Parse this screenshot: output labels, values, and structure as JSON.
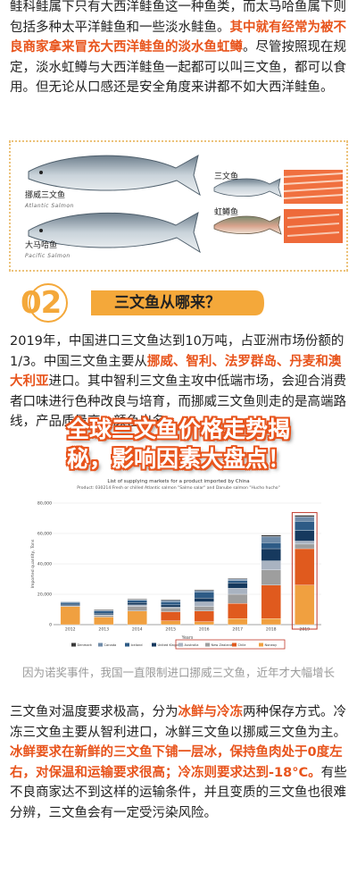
{
  "para1": {
    "t1": "鲑科鲑属下只有大西洋鲑鱼这一种鱼类，而太马哈鱼属下则包括多种太平洋鲑鱼和一些淡水鲑鱼。",
    "h1": "其中就有经常为被不良商家拿来冒充大西洋鲑鱼的淡水鱼虹鳟",
    "t2": "。尽管按照现在规定，淡水虹鳟与大西洋鲑鱼一起都可以叫三文鱼，都可以食用。但无论从口感还是安全角度来讲都不如大西洋鲑鱼。"
  },
  "fish": {
    "atlantic": {
      "cn": "挪威三文鱼",
      "en": "Atlantic Salmon"
    },
    "pacific": {
      "cn": "大马哈鱼",
      "en": "Pacific Salmon"
    },
    "salmon": "三文鱼",
    "trout": "虹鳟鱼"
  },
  "section": {
    "num": "02",
    "title": "三文鱼从哪来？"
  },
  "para2": {
    "t1": "2019年，中国进口三文鱼达到10万吨，占亚洲市场份额的1/3。中国三文鱼主要从",
    "h1": "挪威、智利、法罗群岛、丹麦和澳大利亚",
    "t2": "进口。其中智利三文鱼主攻中低端市场，会迎合消费者口味进行色种改良与培育，而挪威三文鱼则走的是高端路线，产品质量高，颜色出名。"
  },
  "overlay": {
    "line1": "全球三文鱼价格走势揭",
    "line2": "秘，影响因素大盘点！"
  },
  "chart_data": {
    "type": "bar",
    "title": "List of supplying markets for a product imported by China",
    "subtitle": "Product: 030214 Fresh or chilled Atlantic salmon \"Salmo salar\" and Danube salmon \"Hucho hucho\"",
    "ylabel": "Imported quantity, Tons",
    "xlabel": "Years",
    "categories": [
      "2012",
      "2013",
      "2014",
      "2015",
      "2016",
      "2017",
      "2018",
      "2019"
    ],
    "ylim": [
      0,
      80000
    ],
    "yticks": [
      "0",
      "20,000",
      "40,000",
      "60,000",
      "80,000"
    ],
    "series": [
      {
        "name": "Norway",
        "color": "#f0a040",
        "values": [
          12000,
          5000,
          9000,
          2500,
          2000,
          4000,
          4000,
          26000
        ]
      },
      {
        "name": "Chile",
        "color": "#e05a1e",
        "values": [
          0,
          0,
          0,
          6000,
          7000,
          10000,
          22000,
          24000
        ]
      },
      {
        "name": "New Zealand",
        "color": "#9e9e9e",
        "values": [
          0,
          1000,
          3000,
          2500,
          3000,
          6000,
          10000,
          3000
        ]
      },
      {
        "name": "Australia",
        "color": "#a9b3c1",
        "values": [
          500,
          500,
          1000,
          500,
          3000,
          4000,
          6000,
          2000
        ]
      },
      {
        "name": "United Kingdom",
        "color": "#16395e",
        "values": [
          1000,
          1000,
          1500,
          1500,
          2500,
          3500,
          8000,
          7000
        ]
      },
      {
        "name": "Iceland",
        "color": "#2e5b86",
        "values": [
          1000,
          1500,
          1500,
          2000,
          4000,
          1500,
          4000,
          6000
        ]
      },
      {
        "name": "Canada",
        "color": "#6f8ba8",
        "values": [
          500,
          500,
          500,
          1000,
          1000,
          1000,
          4000,
          3000
        ]
      },
      {
        "name": "Denmark",
        "color": "#3a3a3a",
        "values": [
          0,
          500,
          500,
          500,
          500,
          500,
          1000,
          1000
        ]
      }
    ],
    "legend_placement": "bottom"
  },
  "caption": "因为诺奖事件，我国一直限制进口挪威三文鱼，近年才大幅增长",
  "para3": {
    "t1": "三文鱼对温度要求极高，分为",
    "h1": "冰鲜与冷冻",
    "t2": "两种保存方式。冷冻三文鱼主要从智利进口，冰鲜三文鱼以挪威三文鱼为主。",
    "h2": "冰鲜要求在新鲜的三文鱼下铺一层冰，保持鱼肉处于0度左右，对保温和运输要求很高；冷冻则要求达到-18°C。",
    "t3": "有些不良商家达不到这样的运输条件，并且变质的三文鱼也很难分辨，三文鱼会有一定受污染风险。"
  }
}
